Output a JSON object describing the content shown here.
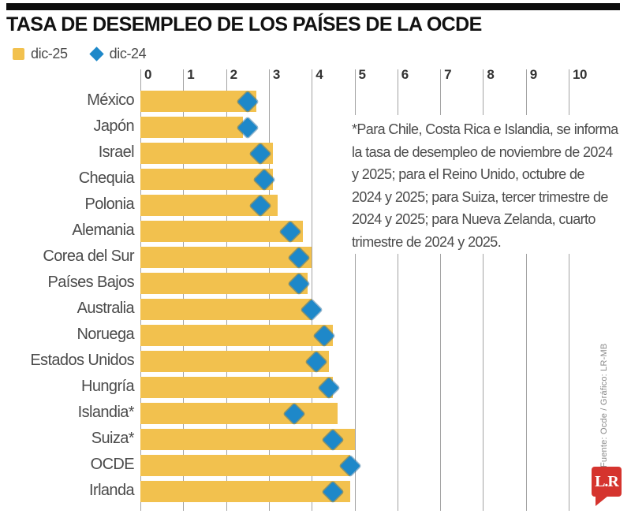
{
  "header": {
    "title": "TASA DE DESEMPLEO DE LOS PAÍSES DE LA OCDE"
  },
  "legend": {
    "bar_label": "dic-25",
    "diamond_label": "dic-24"
  },
  "chart_data": {
    "type": "bar",
    "orientation": "horizontal",
    "title": "TASA DE DESEMPLEO DE LOS PAÍSES DE LA OCDE",
    "xlabel": "",
    "ylabel": "",
    "xlim": [
      0,
      10
    ],
    "x_ticks": [
      0,
      1,
      2,
      3,
      4,
      5,
      6,
      7,
      8,
      9,
      10
    ],
    "grid": true,
    "legend_position": "top-left",
    "categories": [
      "México",
      "Japón",
      "Israel",
      "Chequia",
      "Polonia",
      "Alemania",
      "Corea del Sur",
      "Países Bajos",
      "Australia",
      "Noruega",
      "Estados Unidos",
      "Hungría",
      "Islandia*",
      "Suiza*",
      "OCDE",
      "Irlanda"
    ],
    "series": [
      {
        "name": "dic-25",
        "marker": "bar",
        "color": "#F2C14E",
        "values": [
          2.7,
          2.4,
          3.1,
          3.1,
          3.2,
          3.8,
          4.0,
          3.9,
          4.0,
          4.5,
          4.4,
          4.5,
          4.6,
          5.0,
          4.9,
          4.9
        ]
      },
      {
        "name": "dic-24",
        "marker": "diamond",
        "color": "#1E88C9",
        "values": [
          2.5,
          2.5,
          2.8,
          2.9,
          2.8,
          3.5,
          3.7,
          3.7,
          4.0,
          4.3,
          4.1,
          4.4,
          3.6,
          4.5,
          4.9,
          4.5
        ]
      }
    ]
  },
  "annotation": {
    "text": "*Para Chile, Costa Rica e Islandia, se informa\nla tasa de desempleo de noviembre de 2024\ny 2025; para el Reino Unido, octubre de\n2024 y 2025; para Suiza, tercer trimestre de\n2024 y 2025; para Nueva Zelanda, cuarto\ntrimestre de 2024 y 2025."
  },
  "footer": {
    "credit": "Fuente: Ocde / Gráfico: LR-MB",
    "logo_text": "L.R"
  },
  "colors": {
    "bar": "#F2C14E",
    "diamond": "#1E88C9",
    "gridline": "#a3a3a3",
    "title_text": "#111111",
    "label_text": "#4b4b4b",
    "logo_red": "#D5342E",
    "top_rule": "#0d0d0d"
  }
}
